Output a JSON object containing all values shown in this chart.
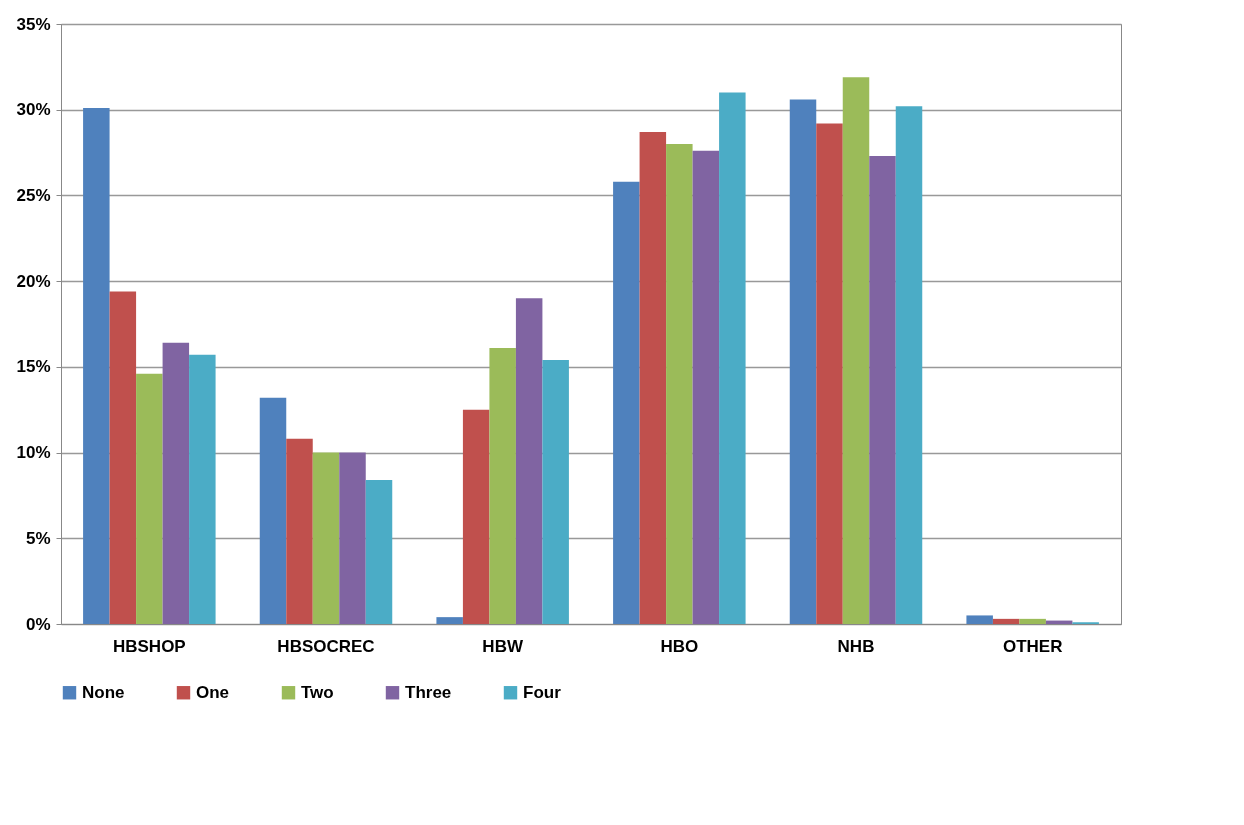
{
  "chart_data": {
    "type": "bar",
    "categories": [
      "HBSHOP",
      "HBSOCREC",
      "HBW",
      "HBO",
      "NHB",
      "OTHER"
    ],
    "series": [
      {
        "name": "None",
        "color": "#4f81bd",
        "values": [
          30.1,
          13.2,
          0.4,
          25.8,
          30.6,
          0.5
        ]
      },
      {
        "name": "One",
        "color": "#c0504d",
        "values": [
          19.4,
          10.8,
          12.5,
          28.7,
          29.2,
          0.3
        ]
      },
      {
        "name": "Two",
        "color": "#9bbb59",
        "values": [
          14.6,
          10.0,
          16.1,
          28.0,
          31.9,
          0.3
        ]
      },
      {
        "name": "Three",
        "color": "#8064a2",
        "values": [
          16.4,
          10.0,
          19.0,
          27.6,
          27.3,
          0.2
        ]
      },
      {
        "name": "Four",
        "color": "#4bacc6",
        "values": [
          15.7,
          8.4,
          15.4,
          31.0,
          30.2,
          0.1
        ]
      }
    ],
    "ylim": [
      0,
      35
    ],
    "yticks": [
      {
        "value": 0,
        "label": "0%"
      },
      {
        "value": 5,
        "label": "5%"
      },
      {
        "value": 10,
        "label": "10%"
      },
      {
        "value": 15,
        "label": "15%"
      },
      {
        "value": 20,
        "label": "20%"
      },
      {
        "value": 25,
        "label": "25%"
      },
      {
        "value": 30,
        "label": "30%"
      },
      {
        "value": 35,
        "label": "35%"
      }
    ],
    "grid": "y",
    "legend": "bottom"
  }
}
